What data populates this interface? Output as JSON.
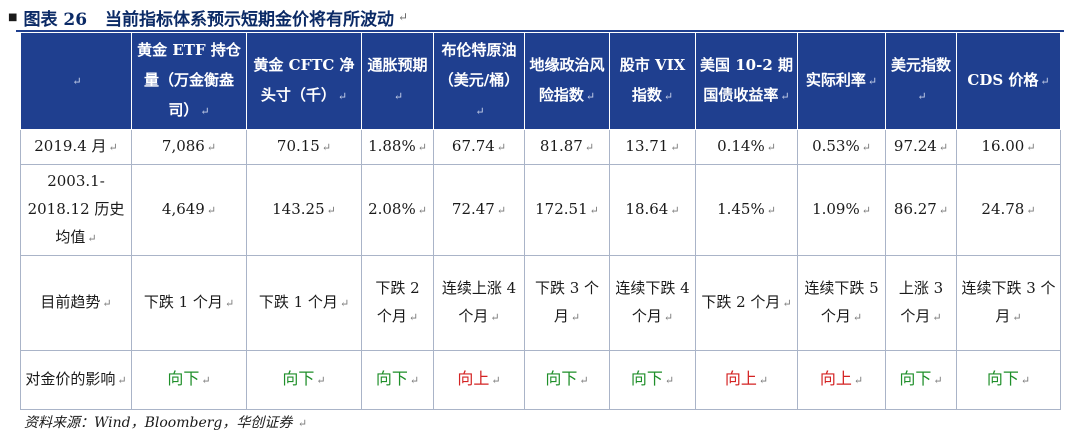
{
  "figure": {
    "label": "图表 26",
    "title": "当前指标体系预示短期金价将有所波动"
  },
  "table": {
    "headers": [
      "",
      "黄金 ETF 持仓量（万金衡盎司）",
      "黄金 CFTC 净头寸（千）",
      "通胀预期",
      "布伦特原油（美元/桶）",
      "地缘政治风险指数",
      "股市 VIX 指数",
      "美国 10-2 期国债收益率",
      "实际利率",
      "美元指数",
      "CDS 价格"
    ],
    "rows": [
      {
        "label": "2019.4 月",
        "cells": [
          "7,086",
          "70.15",
          "1.88%",
          "67.74",
          "81.87",
          "13.71",
          "0.14%",
          "0.53%",
          "97.24",
          "16.00"
        ]
      },
      {
        "label": "2003.1-2018.12 历史均值",
        "cells": [
          "4,649",
          "143.25",
          "2.08%",
          "72.47",
          "172.51",
          "18.64",
          "1.45%",
          "1.09%",
          "86.27",
          "24.78"
        ]
      },
      {
        "label": "目前趋势",
        "cells": [
          "下跌 1 个月",
          "下跌 1 个月",
          "下跌 2 个月",
          "连续上涨 4 个月",
          "下跌 3 个月",
          "连续下跌 4 个月",
          "下跌 2 个月",
          "连续下跌 5 个月",
          "上涨 3 个月",
          "连续下跌 3 个月"
        ]
      },
      {
        "label": "对金价的影响",
        "cells": [
          "向下",
          "向下",
          "向下",
          "向上",
          "向下",
          "向下",
          "向上",
          "向上",
          "向下",
          "向下"
        ],
        "directions": [
          "down",
          "down",
          "down",
          "up",
          "down",
          "down",
          "up",
          "up",
          "down",
          "down"
        ]
      }
    ]
  },
  "colors": {
    "header_bg": "#1f3f8f",
    "header_text": "#ffffff",
    "down": "#1f8f2a",
    "up": "#d42323"
  },
  "source": "资料来源：Wind，Bloomberg，华创证券"
}
